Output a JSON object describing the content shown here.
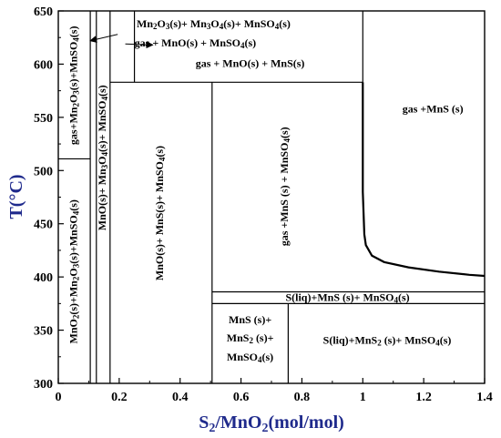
{
  "chart_data": {
    "type": "phase-diagram",
    "xlabel": "S2/MnO2(mol/mol)",
    "ylabel": "T(°C)",
    "xlim": [
      0,
      1.4
    ],
    "ylim": [
      300,
      650
    ],
    "xticks": [
      "0",
      "0.2",
      "0.4",
      "0.6",
      "0.8",
      "1",
      "1.2",
      "1.4"
    ],
    "yticks": [
      "300",
      "350",
      "400",
      "450",
      "500",
      "550",
      "600",
      "650"
    ],
    "boundaries": {
      "vertical": [
        {
          "x": 0.105,
          "y": [
            300,
            650
          ]
        },
        {
          "x": 0.125,
          "y": [
            300,
            650
          ]
        },
        {
          "x": 0.17,
          "y": [
            300,
            650
          ]
        },
        {
          "x": 0.25,
          "y": [
            583,
            650
          ]
        },
        {
          "x": 0.505,
          "y": [
            300,
            583
          ]
        },
        {
          "x": 0.755,
          "y": [
            300,
            375
          ]
        },
        {
          "x": 1.0,
          "y": [
            583,
            650
          ]
        }
      ],
      "horizontal": [
        {
          "y": 511,
          "x": [
            0,
            0.105
          ]
        },
        {
          "y": 583,
          "x": [
            0.17,
            1.0
          ]
        },
        {
          "y": 386,
          "x": [
            0.505,
            1.4
          ]
        },
        {
          "y": 375,
          "x": [
            0.505,
            1.4
          ]
        }
      ],
      "curve": [
        [
          1.0,
          583
        ],
        [
          1.0,
          480
        ],
        [
          1.005,
          440
        ],
        [
          1.01,
          430
        ],
        [
          1.03,
          420
        ],
        [
          1.07,
          414
        ],
        [
          1.15,
          409
        ],
        [
          1.25,
          405
        ],
        [
          1.35,
          402
        ],
        [
          1.4,
          401
        ]
      ]
    },
    "regions": [
      {
        "label": "Mn2O3(s)+ Mn3O4(s)+ MnSO4(s)",
        "parts": [
          [
            "Mn",
            ""
          ],
          [
            "2",
            "sub"
          ],
          [
            "O",
            ""
          ],
          [
            "3",
            "sub"
          ],
          [
            "(s)+ Mn",
            ""
          ],
          [
            "3",
            "sub"
          ],
          [
            "O",
            ""
          ],
          [
            "4",
            "sub"
          ],
          [
            "(s)+ MnSO",
            ""
          ],
          [
            "4",
            "sub"
          ],
          [
            "(s)",
            ""
          ]
        ],
        "x": 0.51,
        "y": 637,
        "rotate": false
      },
      {
        "label": "gas + MnO(s) + MnSO4(s)",
        "parts": [
          [
            "gas + MnO(s) + MnSO",
            ""
          ],
          [
            "4",
            "sub"
          ],
          [
            "(s)",
            ""
          ]
        ],
        "x": 0.45,
        "y": 619,
        "rotate": false
      },
      {
        "label": "gas + MnO(s) + MnS(s)",
        "parts": [
          [
            "gas + MnO(s) + MnS(s)",
            ""
          ]
        ],
        "x": 0.63,
        "y": 600,
        "rotate": false
      },
      {
        "label": "gas +MnS (s)",
        "parts": [
          [
            "gas +MnS (s)",
            ""
          ]
        ],
        "x": 1.23,
        "y": 557,
        "rotate": false
      },
      {
        "label": "gas+Mn2O3(s)+MnSO4(s)",
        "parts": [
          [
            "gas+Mn",
            ""
          ],
          [
            "2",
            "sub"
          ],
          [
            "O",
            ""
          ],
          [
            "3",
            "sub"
          ],
          [
            "(s)+MnSO",
            ""
          ],
          [
            "4",
            "sub"
          ],
          [
            "(s)",
            ""
          ]
        ],
        "x": 0.052,
        "y": 580,
        "rotate": true
      },
      {
        "label": "MnO2(s)+Mn2O3(s)+MnSO4(s)",
        "parts": [
          [
            "MnO",
            ""
          ],
          [
            "2",
            "sub"
          ],
          [
            "(s)+Mn",
            ""
          ],
          [
            "2",
            "sub"
          ],
          [
            "O",
            ""
          ],
          [
            "3",
            "sub"
          ],
          [
            "(s)+MnSO",
            ""
          ],
          [
            "4",
            "sub"
          ],
          [
            "(s)",
            ""
          ]
        ],
        "x": 0.052,
        "y": 405,
        "rotate": true
      },
      {
        "label": "MnO(s)+ Mn3O4(s)+ MnSO4(s)",
        "parts": [
          [
            "MnO(s)+ Mn",
            ""
          ],
          [
            "3",
            "sub"
          ],
          [
            "O",
            ""
          ],
          [
            "4",
            "sub"
          ],
          [
            "(s)+ MnSO",
            ""
          ],
          [
            "4",
            "sub"
          ],
          [
            "(s)",
            ""
          ]
        ],
        "x": 0.147,
        "y": 512,
        "rotate": true
      },
      {
        "label": "MnO(s)+ MnS(s)+ MnSO4(s)",
        "parts": [
          [
            "MnO(s)+ MnS(s)+ MnSO",
            ""
          ],
          [
            "4",
            "sub"
          ],
          [
            "(s)",
            ""
          ]
        ],
        "x": 0.335,
        "y": 460,
        "rotate": true
      },
      {
        "label": "gas +MnS (s) + MnSO4(s)",
        "parts": [
          [
            "gas +MnS (s) + MnSO",
            ""
          ],
          [
            "4",
            "sub"
          ],
          [
            "(s)",
            ""
          ]
        ],
        "x": 0.745,
        "y": 485,
        "rotate": true
      },
      {
        "label": "S(liq)+MnS (s)+ MnSO4(s)",
        "parts": [
          [
            "S(liq)+MnS (s)+ MnSO",
            ""
          ],
          [
            "4",
            "sub"
          ],
          [
            "(s)",
            ""
          ]
        ],
        "x": 0.95,
        "y": 380,
        "rotate": false
      },
      {
        "label": "MnS (s)+",
        "parts": [
          [
            "MnS (s)+",
            ""
          ]
        ],
        "x": 0.63,
        "y": 359,
        "rotate": false
      },
      {
        "label": "MnS2 (s)+",
        "parts": [
          [
            "MnS",
            ""
          ],
          [
            "2",
            "sub"
          ],
          [
            " (s)+",
            ""
          ]
        ],
        "x": 0.63,
        "y": 342,
        "rotate": false
      },
      {
        "label": "MnSO4(s)",
        "parts": [
          [
            "MnSO",
            ""
          ],
          [
            "4",
            "sub"
          ],
          [
            "(s)",
            ""
          ]
        ],
        "x": 0.63,
        "y": 324,
        "rotate": false
      },
      {
        "label": "S(liq)+MnS2 (s)+ MnSO4(s)",
        "parts": [
          [
            "S(liq)+MnS",
            ""
          ],
          [
            "2",
            "sub"
          ],
          [
            " (s)+ MnSO",
            ""
          ],
          [
            "4",
            "sub"
          ],
          [
            "(s)",
            ""
          ]
        ],
        "x": 1.08,
        "y": 340,
        "rotate": false
      }
    ],
    "arrows": [
      {
        "from": [
          0.195,
          628
        ],
        "to": [
          0.105,
          622
        ]
      },
      {
        "from": [
          0.22,
          619
        ],
        "to": [
          0.31,
          618
        ]
      }
    ],
    "grid": false,
    "legend": "none"
  }
}
